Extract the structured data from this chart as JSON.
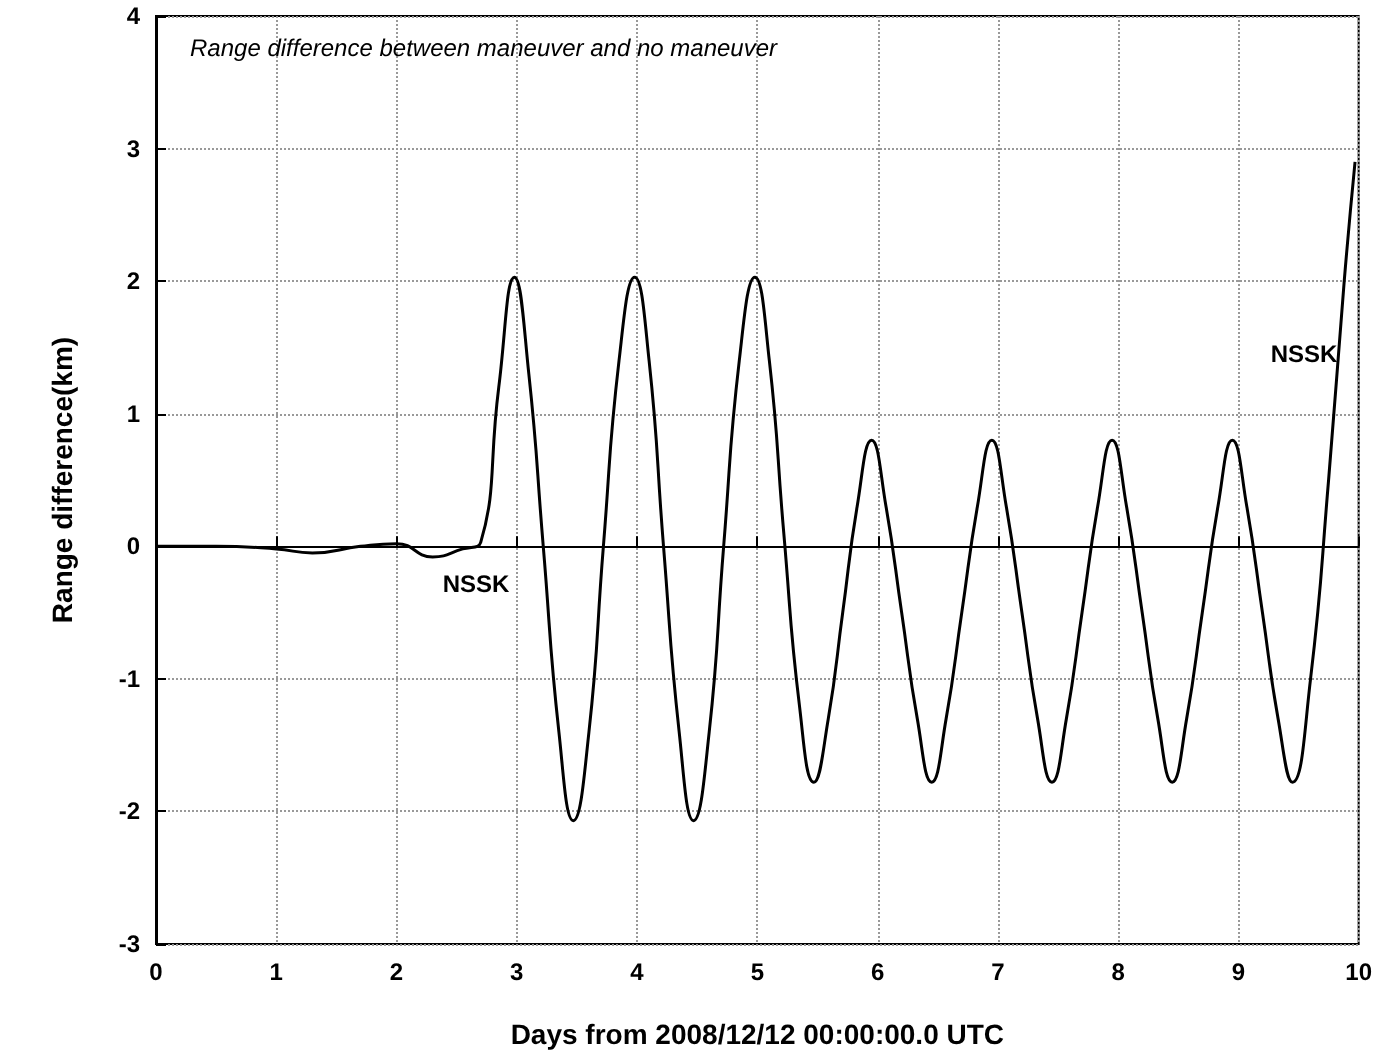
{
  "chart_data": {
    "type": "line",
    "xlabel": "Days from 2008/12/12 00:00:00.0 UTC",
    "ylabel": "Range difference(km)",
    "annotations": [
      "Range difference between maneuver and no maneuver",
      "NSSK",
      "NSSK"
    ],
    "series": [
      {
        "color": "#000000",
        "x": [
          0,
          0.5,
          1.0,
          1.3,
          1.7,
          2.0,
          2.3,
          2.55,
          2.7,
          2.85,
          2.98,
          3.1,
          3.22,
          3.35,
          3.47,
          3.6,
          3.72,
          3.85,
          3.98,
          4.1,
          4.22,
          4.35,
          4.47,
          4.6,
          4.72,
          4.85,
          4.98,
          5.1,
          5.22,
          5.35,
          5.47,
          5.59,
          5.71,
          5.83,
          5.95,
          6.07,
          6.2,
          6.33,
          6.45,
          6.57,
          6.7,
          6.83,
          6.95,
          7.07,
          7.2,
          7.33,
          7.45,
          7.57,
          7.7,
          7.83,
          7.95,
          8.07,
          8.2,
          8.33,
          8.45,
          8.57,
          8.7,
          8.83,
          8.95,
          9.07,
          9.2,
          9.33,
          9.45,
          9.6,
          9.75,
          9.88,
          9.97
        ],
        "values": [
          0,
          0,
          -0.02,
          -0.05,
          0,
          0.02,
          -0.08,
          -0.02,
          0.03,
          1.2,
          2.03,
          1.3,
          0,
          -1.4,
          -2.07,
          -1.4,
          0,
          1.4,
          2.03,
          1.4,
          0,
          -1.4,
          -2.07,
          -1.4,
          0,
          1.4,
          2.03,
          1.4,
          0.1,
          -1.2,
          -1.78,
          -1.3,
          -0.5,
          0.3,
          0.8,
          0.3,
          -0.5,
          -1.3,
          -1.78,
          -1.3,
          -0.5,
          0.3,
          0.8,
          0.3,
          -0.5,
          -1.3,
          -1.78,
          -1.3,
          -0.5,
          0.3,
          0.8,
          0.3,
          -0.5,
          -1.3,
          -1.78,
          -1.3,
          -0.5,
          0.3,
          0.8,
          0.3,
          -0.5,
          -1.3,
          -1.78,
          -1.0,
          0.5,
          2.0,
          2.9
        ]
      }
    ],
    "xlim": [
      0,
      10
    ],
    "xticks": [
      0,
      1,
      2,
      3,
      4,
      5,
      6,
      7,
      8,
      9,
      10
    ],
    "ylim": [
      -3,
      4
    ],
    "yticks": [
      -3,
      -2,
      -1,
      0,
      1,
      2,
      3,
      4
    ],
    "grid": true,
    "marker": "none",
    "line_style": "solid"
  }
}
